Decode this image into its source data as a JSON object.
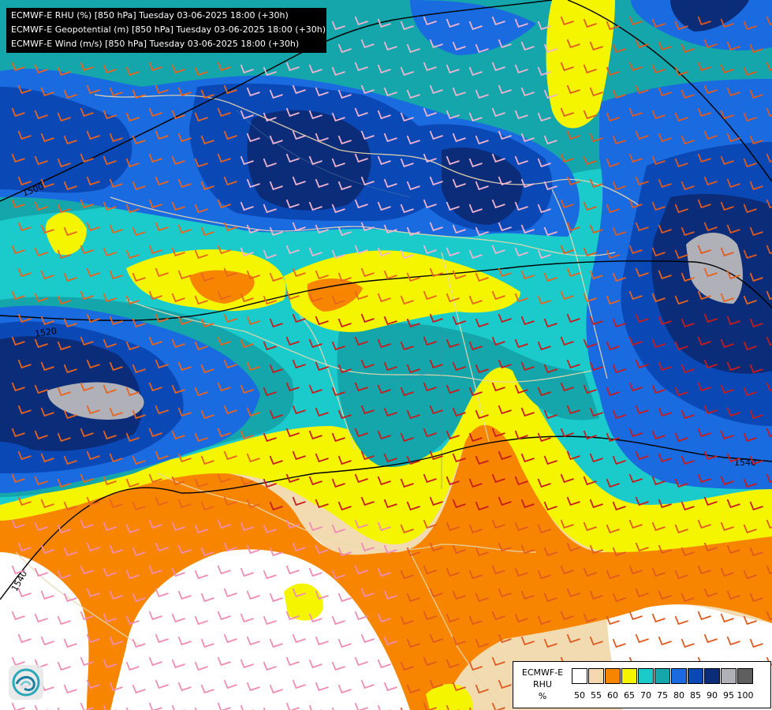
{
  "title_lines": [
    "ECMWF-E RHU (%) [850 hPa] Tuesday 03-06-2025 18:00 (+30h)",
    "ECMWF-E Geopotential (m) [850 hPa] Tuesday 03-06-2025 18:00 (+30h)",
    "ECMWF-E Wind (m/s) [850 hPa] Tuesday 03-06-2025 18:00 (+30h)"
  ],
  "contour_labels": [
    "1500",
    "1520",
    "1540",
    "1540"
  ],
  "legend": {
    "title_line1": "ECMWF-E",
    "title_line2": "RHU",
    "unit": "%",
    "ticks": [
      "50",
      "55",
      "60",
      "65",
      "70",
      "75",
      "80",
      "85",
      "90",
      "95",
      "100"
    ],
    "colors": [
      "#ffffff",
      "#f5d9ae",
      "#f78500",
      "#f5f500",
      "#1bcbcb",
      "#14a6ab",
      "#1a6ae0",
      "#0a48b6",
      "#0b2c79",
      "#b0b0b8",
      "#5f5f5f"
    ]
  },
  "logo": "ecmwf-swirl-icon"
}
